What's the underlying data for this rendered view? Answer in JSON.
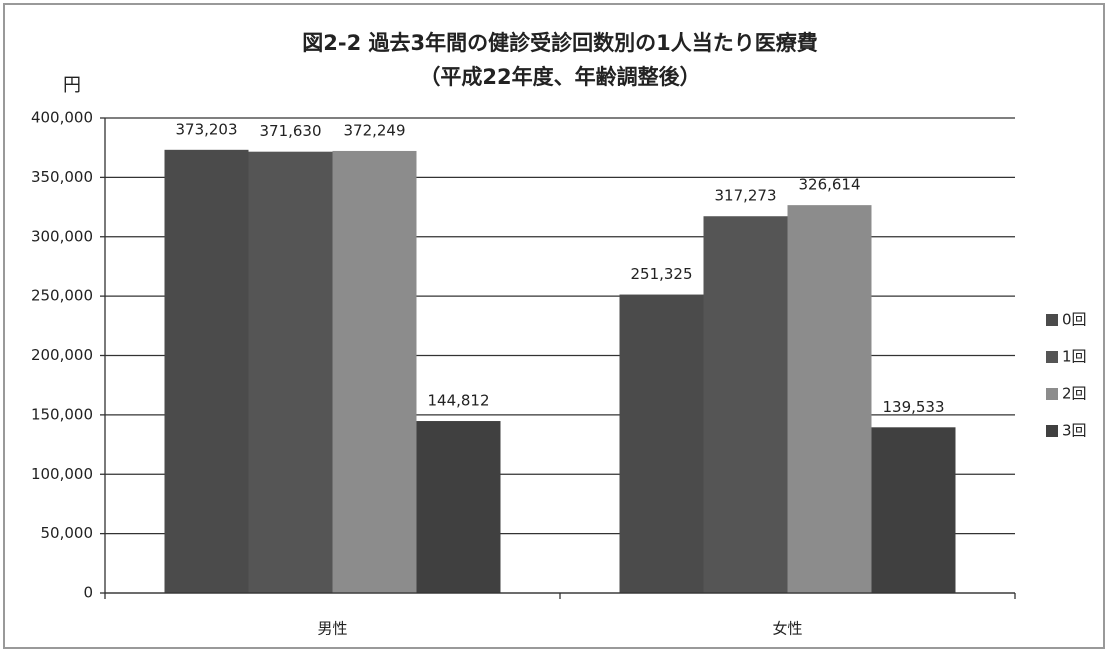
{
  "chart_data": {
    "type": "bar",
    "title": "図2-2 過去3年間の健診受診回数別の1人当たり医療費",
    "subtitle": "（平成22年度、年齢調整後）",
    "y_label": "円",
    "categories": [
      "男性",
      "女性"
    ],
    "series": [
      {
        "name": "0回",
        "color": "#4b4b4b",
        "values": [
          373203,
          251325
        ],
        "value_labels": [
          "373,203",
          "251,325"
        ]
      },
      {
        "name": "1回",
        "color": "#555555",
        "values": [
          371630,
          317273
        ],
        "value_labels": [
          "371,630",
          "317,273"
        ]
      },
      {
        "name": "2回",
        "color": "#8c8c8c",
        "values": [
          372249,
          326614
        ],
        "value_labels": [
          "372,249",
          "326,614"
        ]
      },
      {
        "name": "3回",
        "color": "#404040",
        "values": [
          144812,
          139533
        ],
        "value_labels": [
          "144,812",
          "139,533"
        ]
      }
    ],
    "ylim": [
      0,
      400000
    ],
    "yticks": [
      0,
      {
        "value": 50000,
        "label": "50,000"
      },
      {
        "value": 100000,
        "label": "100,000"
      },
      {
        "value": 150000,
        "label": "150,000"
      },
      {
        "value": 200000,
        "label": "200,000"
      },
      {
        "value": 250000,
        "label": "250,000"
      },
      {
        "value": 300000,
        "label": "300,000"
      },
      {
        "value": 350000,
        "label": "350,000"
      },
      {
        "value": 400000,
        "label": "400,000"
      }
    ],
    "grid": true,
    "legend": "right"
  }
}
